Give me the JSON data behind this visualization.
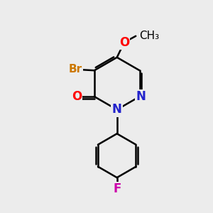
{
  "background_color": "#ececec",
  "bond_color": "#000000",
  "bond_width": 1.8,
  "atom_colors": {
    "O_carbonyl": "#ff0000",
    "O_methoxy": "#ff0000",
    "N1": "#2222cc",
    "N2": "#2222cc",
    "Br": "#cc7700",
    "F": "#cc00aa",
    "C": "#000000"
  },
  "atom_fontsizes": {
    "O": 12,
    "N": 12,
    "Br": 11,
    "F": 12,
    "methoxy": 11
  }
}
